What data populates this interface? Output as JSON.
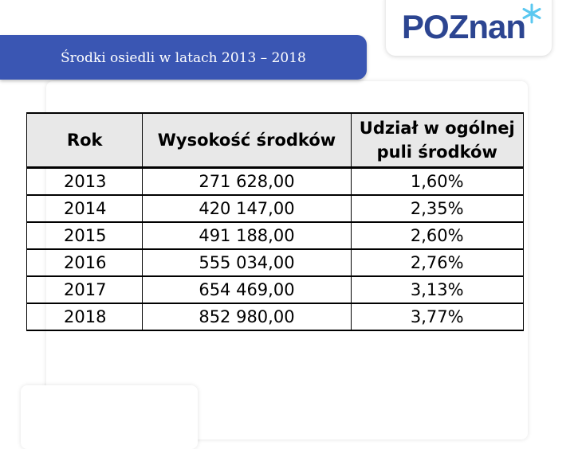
{
  "title": "Środki osiedli w latach 2013 – 2018",
  "logo": {
    "text": "POZnan",
    "accent_color": "#5bc8f0",
    "brand_color": "#2c4591"
  },
  "table": {
    "headers": {
      "year": "Rok",
      "amount": "Wysokość środków",
      "share_line1": "Udział w ogólnej",
      "share_line2": "puli środków"
    },
    "rows": [
      {
        "year": "2013",
        "amount": "271 628,00",
        "share": "1,60%"
      },
      {
        "year": "2014",
        "amount": "420 147,00",
        "share": "2,35%"
      },
      {
        "year": "2015",
        "amount": "491 188,00",
        "share": "2,60%"
      },
      {
        "year": "2016",
        "amount": "555 034,00",
        "share": "2,76%"
      },
      {
        "year": "2017",
        "amount": "654 469,00",
        "share": "3,13%"
      },
      {
        "year": "2018",
        "amount": "852 980,00",
        "share": "3,77%"
      }
    ]
  }
}
